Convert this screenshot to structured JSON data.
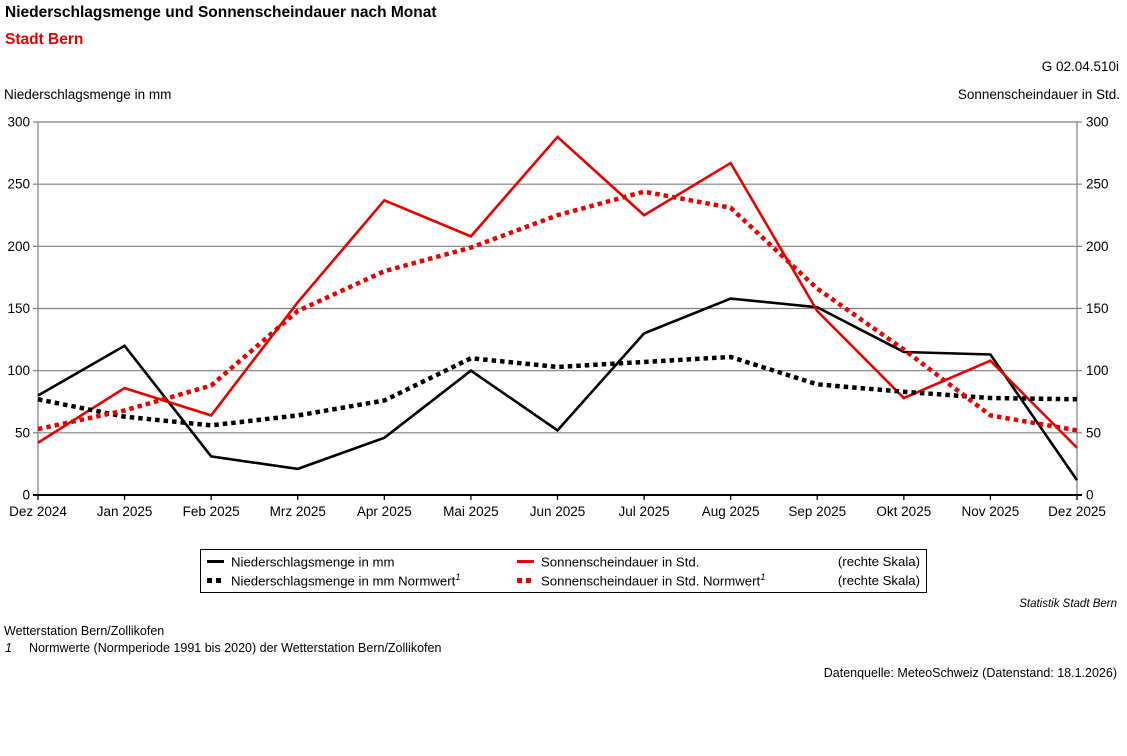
{
  "header": {
    "title": "Niederschlagsmenge und Sonnenscheindauer nach Monat",
    "subtitle": "Stadt Bern",
    "figure_id": "G 02.04.510i"
  },
  "axes": {
    "left_caption": "Niederschlagsmenge in mm",
    "right_caption": "Sonnenscheindauer in Std."
  },
  "chart_data": {
    "type": "line",
    "categories": [
      "Dez 2024",
      "Jan 2025",
      "Feb 2025",
      "Mrz 2025",
      "Apr 2025",
      "Mai 2025",
      "Jun 2025",
      "Jul 2025",
      "Aug 2025",
      "Sep 2025",
      "Okt 2025",
      "Nov 2025",
      "Dez 2025"
    ],
    "y_ticks": [
      0,
      50,
      100,
      150,
      200,
      250,
      300
    ],
    "ylim": [
      0,
      300
    ],
    "grid": true,
    "left_axis_label": "Niederschlagsmenge in mm",
    "right_axis_label": "Sonnenscheindauer in Std.",
    "legend_position": "bottom",
    "series": [
      {
        "name": "Niederschlagsmenge in mm",
        "axis": "left",
        "style": "solid",
        "color": "#000000",
        "values": [
          80,
          120,
          31,
          21,
          46,
          100,
          52,
          130,
          158,
          151,
          115,
          113,
          12
        ]
      },
      {
        "name": "Sonnenscheindauer in Std.",
        "axis": "right",
        "style": "solid",
        "color": "#e60000",
        "values": [
          42,
          86,
          64,
          155,
          237,
          208,
          288,
          225,
          267,
          148,
          78,
          108,
          38
        ]
      },
      {
        "name": "Niederschlagsmenge in mm Normwert",
        "sup": "1",
        "axis": "left",
        "style": "dotted",
        "color": "#000000",
        "values": [
          77,
          63,
          56,
          64,
          76,
          110,
          103,
          107,
          111,
          89,
          83,
          78,
          77
        ]
      },
      {
        "name": "Sonnenscheindauer in Std. Normwert",
        "sup": "1",
        "axis": "right",
        "style": "dotted",
        "color": "#e60000",
        "values": [
          53,
          68,
          88,
          148,
          180,
          199,
          225,
          244,
          231,
          166,
          117,
          64,
          52
        ]
      }
    ]
  },
  "legend": {
    "rows": [
      {
        "col1": {
          "label": "Niederschlagsmenge in mm",
          "sup": "",
          "style": "solid",
          "color": "#000000"
        },
        "col2": {
          "label": "Sonnenscheindauer in Std.",
          "sup": "",
          "style": "solid",
          "color": "#e60000"
        },
        "col3": "(rechte Skala)"
      },
      {
        "col1": {
          "label": "Niederschlagsmenge in mm Normwert",
          "sup": "1",
          "style": "dotted",
          "color": "#000000"
        },
        "col2": {
          "label": "Sonnenscheindauer in Std. Normwert",
          "sup": "1",
          "style": "dotted",
          "color": "#e60000"
        },
        "col3": "(rechte Skala)"
      }
    ]
  },
  "footer": {
    "statistik": "Statistik Stadt Bern",
    "station": "Wetterstation Bern/Zollikofen",
    "footnote_marker": "1",
    "footnote_text": "Normwerte (Normperiode 1991 bis 2020) der Wetterstation Bern/Zollikofen",
    "datasource": "Datenquelle: MeteoSchweiz (Datenstand: 18.1.2026)"
  },
  "colors": {
    "line_red": "#e60000",
    "line_black": "#000000",
    "grid_gray": "#808080"
  }
}
